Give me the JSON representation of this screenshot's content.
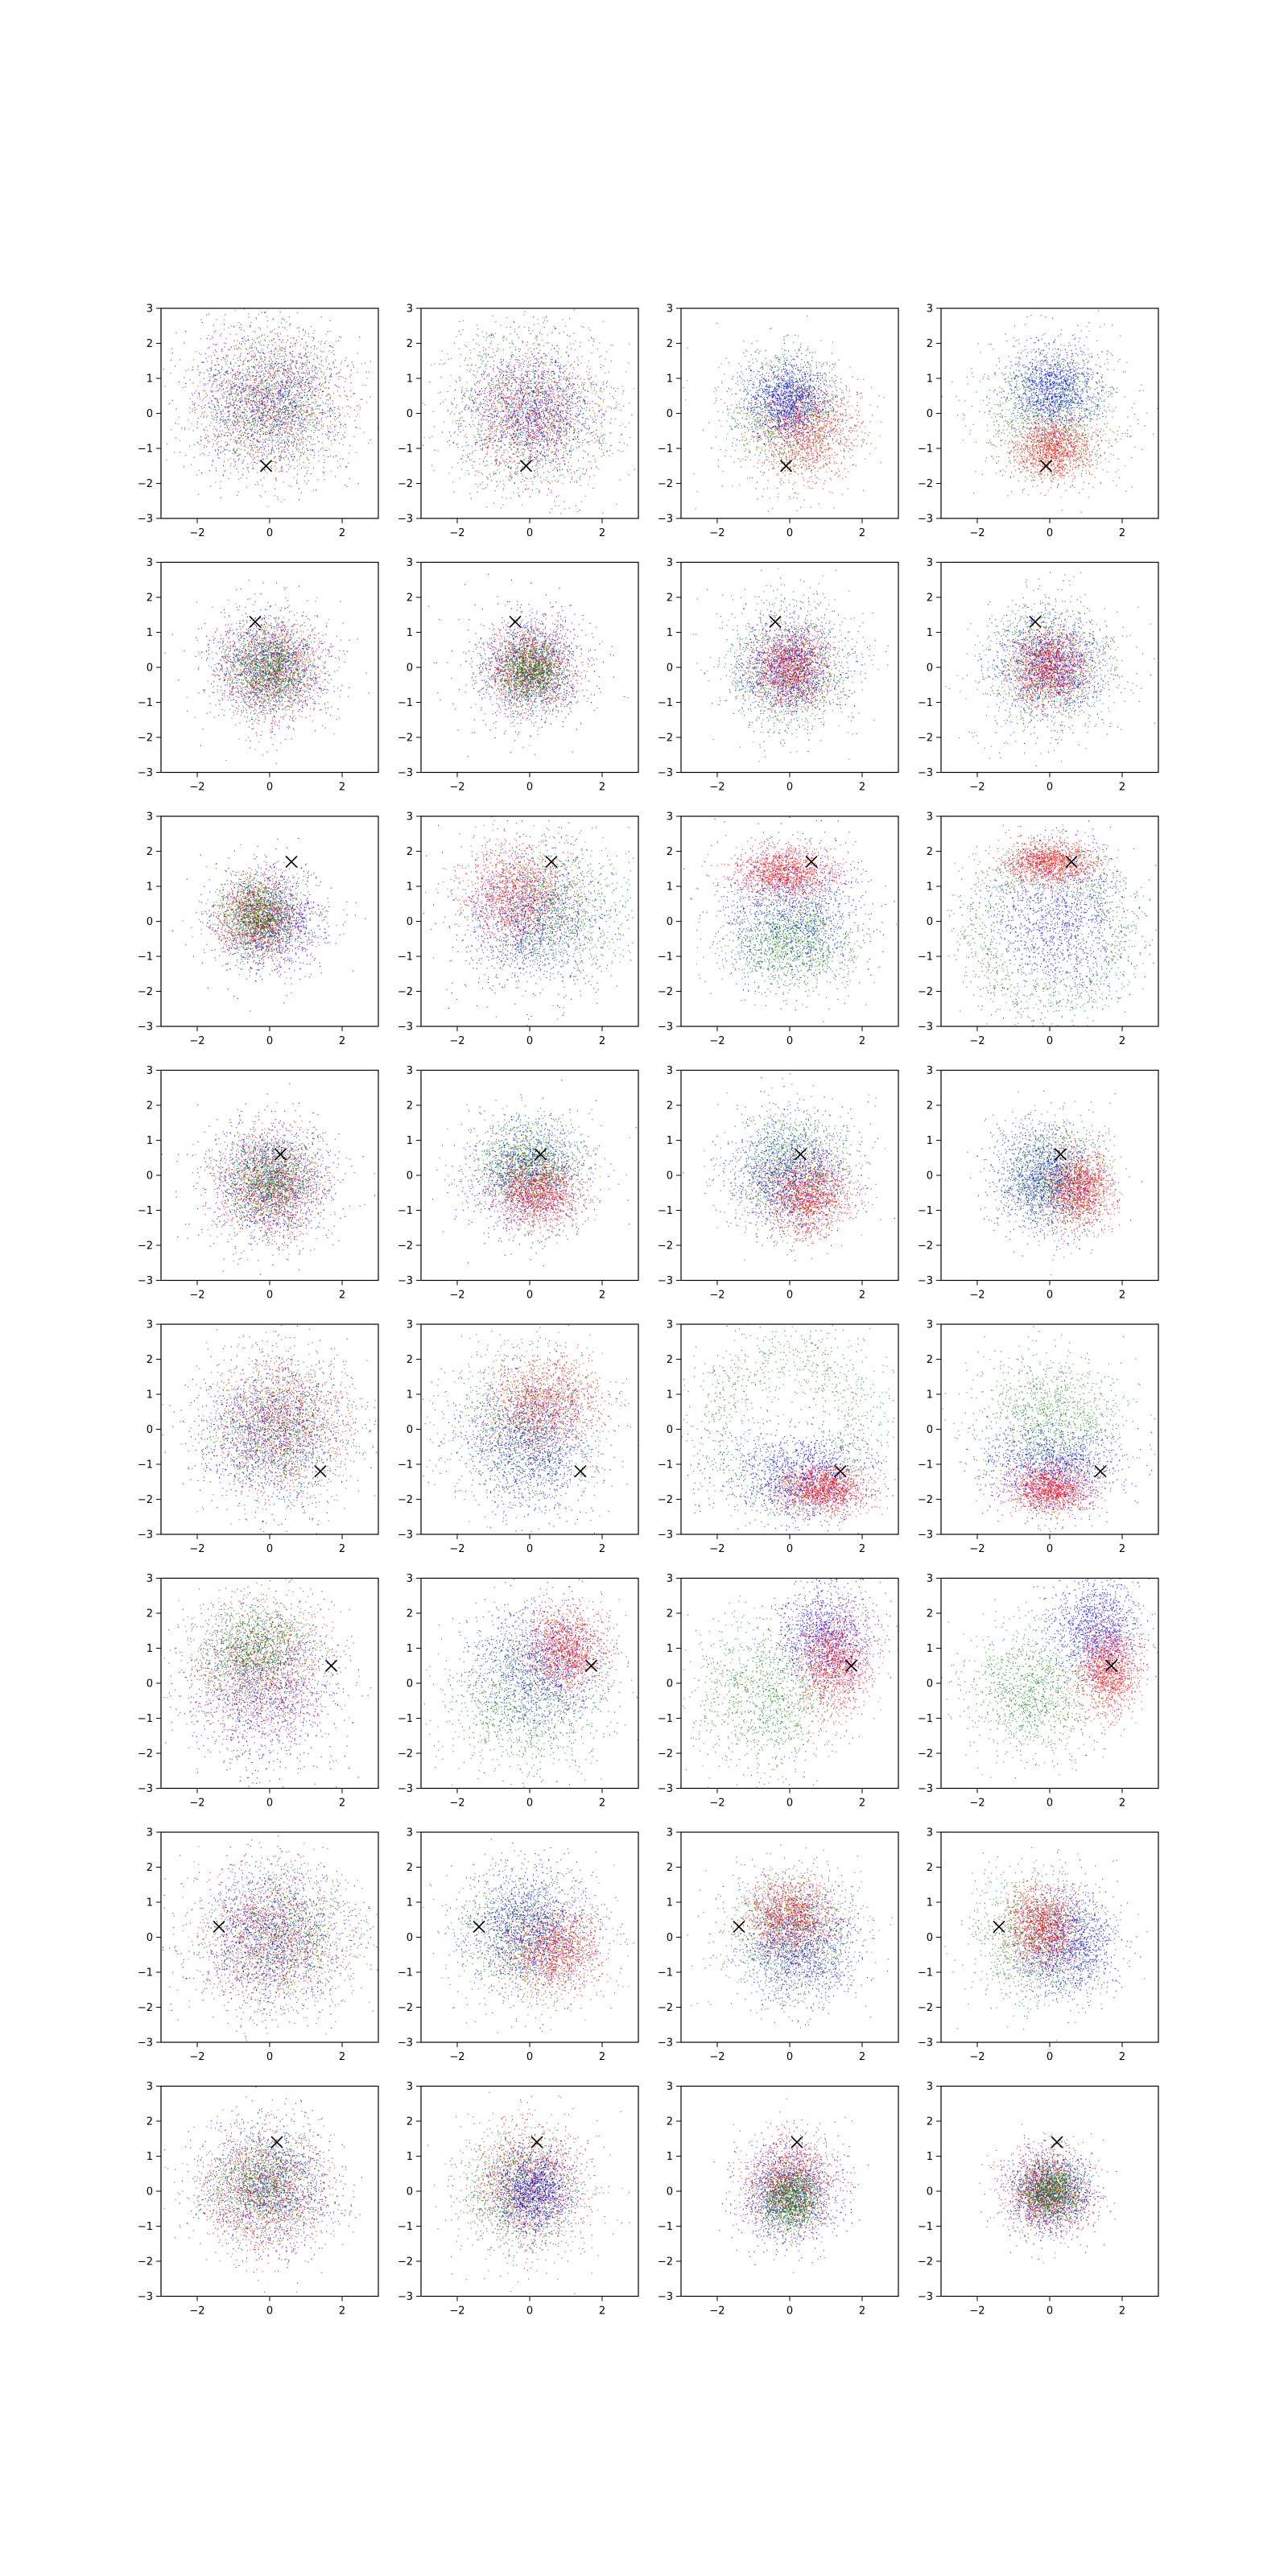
{
  "chart_data": {
    "type": "scatter",
    "layout": {
      "rows": 8,
      "cols": 4
    },
    "axes_common": {
      "xlim": [
        -3,
        3
      ],
      "ylim": [
        -3,
        3
      ],
      "xticks": [
        -2,
        0,
        2
      ],
      "yticks": [
        -3,
        -2,
        -1,
        0,
        1,
        2,
        3
      ],
      "grid": false
    },
    "tick_labels": {
      "x": [
        "−2",
        "0",
        "2"
      ],
      "y": [
        "−3",
        "−2",
        "−1",
        "0",
        "1",
        "2",
        "3"
      ]
    },
    "series_colors": {
      "red": "#ff0000",
      "green": "#008000",
      "blue": "#0000ff"
    },
    "marker_color": "#000000",
    "points_per_series": 1200,
    "rows": [
      {
        "marker": [
          -0.1,
          -1.5
        ],
        "panels": [
          [
            {
              "c": "red",
              "cx": 0,
              "cy": 0.3,
              "sx": 1.0,
              "sy": 1.0
            },
            {
              "c": "green",
              "cx": 0,
              "cy": 0.3,
              "sx": 1.0,
              "sy": 1.0
            },
            {
              "c": "blue",
              "cx": 0,
              "cy": 0.4,
              "sx": 1.0,
              "sy": 1.0
            }
          ],
          [
            {
              "c": "green",
              "cx": 0,
              "cy": 0,
              "sx": 1.3,
              "sy": 1.3
            },
            {
              "c": "red",
              "cx": 0,
              "cy": 0,
              "sx": 0.9,
              "sy": 0.9
            },
            {
              "c": "blue",
              "cx": 0,
              "cy": 0.1,
              "sx": 0.9,
              "sy": 0.9
            }
          ],
          [
            {
              "c": "green",
              "cx": 0,
              "cy": 0,
              "sx": 0.9,
              "sy": 0.9
            },
            {
              "c": "red",
              "cx": 0.4,
              "cy": -0.5,
              "sx": 0.7,
              "sy": 0.7
            },
            {
              "c": "blue",
              "cx": -0.1,
              "cy": 0.4,
              "sx": 0.55,
              "sy": 0.55
            }
          ],
          [
            {
              "c": "green",
              "cx": 0,
              "cy": 0,
              "sx": 1.0,
              "sy": 1.0
            },
            {
              "c": "red",
              "cx": 0.1,
              "cy": -1.0,
              "sx": 0.55,
              "sy": 0.45
            },
            {
              "c": "blue",
              "cx": 0.1,
              "cy": 0.7,
              "sx": 0.6,
              "sy": 0.6
            }
          ]
        ]
      },
      {
        "marker": [
          -0.4,
          1.3
        ],
        "panels": [
          [
            {
              "c": "blue",
              "cx": 0,
              "cy": 0,
              "sx": 0.8,
              "sy": 0.8
            },
            {
              "c": "red",
              "cx": 0,
              "cy": 0,
              "sx": 0.75,
              "sy": 0.75
            },
            {
              "c": "green",
              "cx": 0,
              "cy": 0,
              "sx": 0.6,
              "sy": 0.6
            }
          ],
          [
            {
              "c": "blue",
              "cx": 0,
              "cy": 0,
              "sx": 0.8,
              "sy": 0.8
            },
            {
              "c": "red",
              "cx": 0,
              "cy": 0,
              "sx": 0.6,
              "sy": 0.6
            },
            {
              "c": "green",
              "cx": 0,
              "cy": -0.1,
              "sx": 0.5,
              "sy": 0.5
            }
          ],
          [
            {
              "c": "green",
              "cx": 0,
              "cy": 0,
              "sx": 0.95,
              "sy": 0.95
            },
            {
              "c": "blue",
              "cx": 0,
              "cy": 0,
              "sx": 0.7,
              "sy": 0.7
            },
            {
              "c": "red",
              "cx": 0,
              "cy": 0,
              "sx": 0.55,
              "sy": 0.55
            }
          ],
          [
            {
              "c": "green",
              "cx": 0,
              "cy": 0,
              "sx": 0.95,
              "sy": 0.95
            },
            {
              "c": "blue",
              "cx": 0,
              "cy": 0.1,
              "sx": 0.7,
              "sy": 0.7
            },
            {
              "c": "red",
              "cx": 0,
              "cy": 0,
              "sx": 0.55,
              "sy": 0.55
            }
          ]
        ]
      },
      {
        "marker": [
          0.6,
          1.7
        ],
        "panels": [
          [
            {
              "c": "blue",
              "cx": 0,
              "cy": 0,
              "sx": 0.75,
              "sy": 0.75
            },
            {
              "c": "red",
              "cx": -0.3,
              "cy": 0.1,
              "sx": 0.6,
              "sy": 0.6
            },
            {
              "c": "green",
              "cx": -0.3,
              "cy": 0.2,
              "sx": 0.55,
              "sy": 0.55
            }
          ],
          [
            {
              "c": "green",
              "cx": 0.7,
              "cy": 0.3,
              "sx": 1.0,
              "sy": 1.0
            },
            {
              "c": "blue",
              "cx": 0,
              "cy": 0,
              "sx": 1.0,
              "sy": 1.0
            },
            {
              "c": "red",
              "cx": -0.4,
              "cy": 0.8,
              "sx": 0.7,
              "sy": 0.7
            }
          ],
          [
            {
              "c": "blue",
              "cx": 0,
              "cy": 0.3,
              "sx": 1.0,
              "sy": 1.0
            },
            {
              "c": "green",
              "cx": 0,
              "cy": -0.6,
              "sx": 0.9,
              "sy": 0.7
            },
            {
              "c": "red",
              "cx": -0.2,
              "cy": 1.4,
              "sx": 0.7,
              "sy": 0.35
            }
          ],
          [
            {
              "c": "green",
              "cx": 0,
              "cy": -0.3,
              "ring": 2.0,
              "rs": 0.5
            },
            {
              "c": "blue",
              "cx": 0.2,
              "cy": 0,
              "sx": 0.9,
              "sy": 1.0
            },
            {
              "c": "red",
              "cx": 0,
              "cy": 1.7,
              "sx": 0.65,
              "sy": 0.3
            }
          ]
        ]
      },
      {
        "marker": [
          0.3,
          0.6
        ],
        "panels": [
          [
            {
              "c": "blue",
              "cx": 0,
              "cy": -0.2,
              "sx": 0.85,
              "sy": 0.85
            },
            {
              "c": "red",
              "cx": 0,
              "cy": -0.3,
              "sx": 0.75,
              "sy": 0.75
            },
            {
              "c": "green",
              "cx": 0,
              "cy": -0.2,
              "sx": 0.65,
              "sy": 0.65
            }
          ],
          [
            {
              "c": "blue",
              "cx": 0,
              "cy": 0,
              "sx": 0.85,
              "sy": 0.85
            },
            {
              "c": "green",
              "cx": 0,
              "cy": 0.3,
              "sx": 0.7,
              "sy": 0.6
            },
            {
              "c": "red",
              "cx": 0.2,
              "cy": -0.5,
              "sx": 0.6,
              "sy": 0.5
            }
          ],
          [
            {
              "c": "green",
              "cx": 0,
              "cy": 0.2,
              "sx": 0.9,
              "sy": 0.9
            },
            {
              "c": "blue",
              "cx": 0,
              "cy": 0,
              "sx": 0.8,
              "sy": 0.8
            },
            {
              "c": "red",
              "cx": 0.5,
              "cy": -0.6,
              "sx": 0.6,
              "sy": 0.55
            }
          ],
          [
            {
              "c": "green",
              "cx": 0,
              "cy": 0,
              "sx": 0.7,
              "sy": 0.8
            },
            {
              "c": "blue",
              "cx": -0.1,
              "cy": -0.1,
              "sx": 0.7,
              "sy": 0.7
            },
            {
              "c": "red",
              "cx": 0.8,
              "cy": -0.4,
              "sx": 0.45,
              "sy": 0.55
            }
          ]
        ]
      },
      {
        "marker": [
          1.4,
          -1.2
        ],
        "panels": [
          [
            {
              "c": "green",
              "cx": 0.2,
              "cy": 0,
              "sx": 1.0,
              "sy": 1.0
            },
            {
              "c": "blue",
              "cx": 0,
              "cy": -0.1,
              "sx": 1.0,
              "sy": 1.0
            },
            {
              "c": "red",
              "cx": 0.3,
              "cy": 0.2,
              "sx": 0.9,
              "sy": 1.0
            }
          ],
          [
            {
              "c": "green",
              "cx": -0.2,
              "cy": 0,
              "sx": 1.1,
              "sy": 1.1
            },
            {
              "c": "blue",
              "cx": 0,
              "cy": -0.4,
              "sx": 0.9,
              "sy": 0.9
            },
            {
              "c": "red",
              "cx": 0.4,
              "cy": 0.8,
              "sx": 0.8,
              "sy": 0.7
            }
          ],
          [
            {
              "c": "green",
              "cx": 0,
              "cy": 0.2,
              "ring": 2.0,
              "rs": 0.6
            },
            {
              "c": "blue",
              "cx": 0.3,
              "cy": -1.3,
              "sx": 1.0,
              "sy": 0.6
            },
            {
              "c": "red",
              "cx": 0.9,
              "cy": -1.7,
              "sx": 0.6,
              "sy": 0.35
            }
          ],
          [
            {
              "c": "green",
              "cx": 0,
              "cy": 0.3,
              "sx": 1.0,
              "sy": 0.9
            },
            {
              "c": "blue",
              "cx": 0.1,
              "cy": -1.1,
              "sx": 0.9,
              "sy": 0.6
            },
            {
              "c": "red",
              "cx": 0,
              "cy": -1.7,
              "sx": 0.55,
              "sy": 0.35
            }
          ]
        ]
      },
      {
        "marker": [
          1.7,
          0.5
        ],
        "panels": [
          [
            {
              "c": "blue",
              "cx": -0.2,
              "cy": -0.2,
              "sx": 1.0,
              "sy": 1.1
            },
            {
              "c": "red",
              "cx": -0.2,
              "cy": 0.3,
              "sx": 1.0,
              "sy": 1.0
            },
            {
              "c": "green",
              "cx": -0.4,
              "cy": 1.0,
              "sx": 0.8,
              "sy": 0.7
            }
          ],
          [
            {
              "c": "green",
              "cx": -0.2,
              "cy": -0.5,
              "sx": 1.1,
              "sy": 1.1
            },
            {
              "c": "blue",
              "cx": 0.3,
              "cy": 0.5,
              "sx": 0.9,
              "sy": 0.9
            },
            {
              "c": "red",
              "cx": 1.0,
              "cy": 1.0,
              "sx": 0.55,
              "sy": 0.6
            }
          ],
          [
            {
              "c": "green",
              "cx": -0.7,
              "cy": -0.4,
              "sx": 1.0,
              "sy": 1.1
            },
            {
              "c": "blue",
              "cx": 1.0,
              "cy": 1.4,
              "sx": 0.7,
              "sy": 0.7
            },
            {
              "c": "red",
              "cx": 1.2,
              "cy": 0.6,
              "sx": 0.5,
              "sy": 0.7
            }
          ],
          [
            {
              "c": "green",
              "cx": -0.5,
              "cy": -0.2,
              "sx": 0.9,
              "sy": 0.9
            },
            {
              "c": "blue",
              "cx": 1.3,
              "cy": 1.6,
              "sx": 0.6,
              "sy": 0.7
            },
            {
              "c": "red",
              "cx": 1.6,
              "cy": 0.4,
              "sx": 0.4,
              "sy": 0.6
            }
          ]
        ]
      },
      {
        "marker": [
          -1.4,
          0.3
        ],
        "panels": [
          [
            {
              "c": "green",
              "cx": 0.4,
              "cy": 0,
              "sx": 1.0,
              "sy": 1.0
            },
            {
              "c": "red",
              "cx": 0,
              "cy": 0,
              "sx": 1.0,
              "sy": 1.0
            },
            {
              "c": "blue",
              "cx": 0,
              "cy": 0,
              "sx": 1.0,
              "sy": 1.0
            }
          ],
          [
            {
              "c": "green",
              "cx": -0.2,
              "cy": 0,
              "sx": 1.0,
              "sy": 1.0
            },
            {
              "c": "blue",
              "cx": 0,
              "cy": 0.3,
              "sx": 0.8,
              "sy": 0.8
            },
            {
              "c": "red",
              "cx": 0.7,
              "cy": -0.4,
              "sx": 0.7,
              "sy": 0.6
            }
          ],
          [
            {
              "c": "green",
              "cx": 0,
              "cy": 0,
              "sx": 0.9,
              "sy": 0.9
            },
            {
              "c": "blue",
              "cx": 0.3,
              "cy": -0.2,
              "sx": 0.75,
              "sy": 0.8
            },
            {
              "c": "red",
              "cx": 0,
              "cy": 0.6,
              "sx": 0.6,
              "sy": 0.55
            }
          ],
          [
            {
              "c": "green",
              "cx": -0.3,
              "cy": 0,
              "sx": 0.9,
              "sy": 0.9
            },
            {
              "c": "blue",
              "cx": 0.5,
              "cy": -0.2,
              "sx": 0.65,
              "sy": 0.75
            },
            {
              "c": "red",
              "cx": -0.2,
              "cy": 0.3,
              "sx": 0.5,
              "sy": 0.6
            }
          ]
        ]
      },
      {
        "marker": [
          0.2,
          1.4
        ],
        "panels": [
          [
            {
              "c": "blue",
              "cx": 0,
              "cy": 0.2,
              "sx": 0.9,
              "sy": 0.9
            },
            {
              "c": "red",
              "cx": -0.2,
              "cy": 0,
              "sx": 0.85,
              "sy": 0.85
            },
            {
              "c": "green",
              "cx": -0.2,
              "cy": 0.2,
              "sx": 0.75,
              "sy": 0.75
            }
          ],
          [
            {
              "c": "green",
              "cx": -0.3,
              "cy": 0,
              "sx": 0.85,
              "sy": 0.85
            },
            {
              "c": "red",
              "cx": 0,
              "cy": 0.2,
              "sx": 0.85,
              "sy": 0.9
            },
            {
              "c": "blue",
              "cx": 0.1,
              "cy": 0,
              "sx": 0.55,
              "sy": 0.6
            }
          ],
          [
            {
              "c": "blue",
              "cx": 0,
              "cy": 0,
              "sx": 0.7,
              "sy": 0.7
            },
            {
              "c": "red",
              "cx": 0,
              "cy": 0.2,
              "sx": 0.6,
              "sy": 0.7
            },
            {
              "c": "green",
              "cx": 0,
              "cy": -0.2,
              "sx": 0.45,
              "sy": 0.45
            }
          ],
          [
            {
              "c": "blue",
              "cx": 0,
              "cy": 0,
              "sx": 0.6,
              "sy": 0.6
            },
            {
              "c": "red",
              "cx": -0.1,
              "cy": 0,
              "sx": 0.55,
              "sy": 0.55
            },
            {
              "c": "green",
              "cx": 0,
              "cy": 0,
              "sx": 0.45,
              "sy": 0.45
            }
          ]
        ]
      }
    ]
  }
}
